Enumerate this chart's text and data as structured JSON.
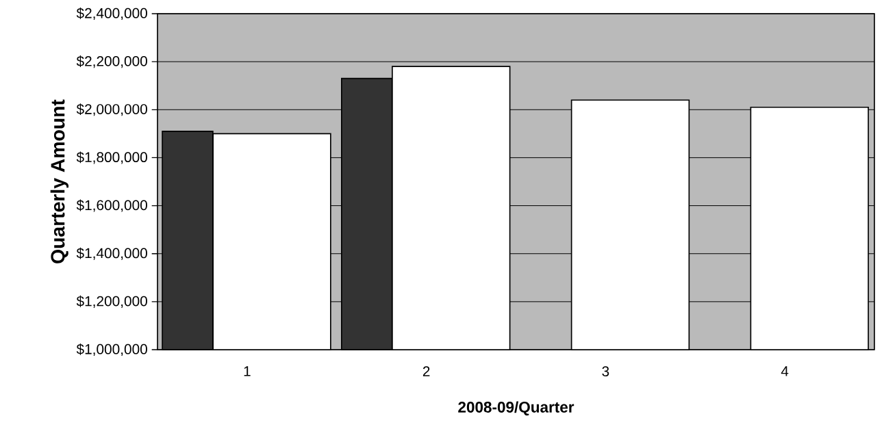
{
  "chart_data": {
    "type": "bar",
    "xlabel": "2008-09/Quarter",
    "ylabel": "Quarterly Amount",
    "categories": [
      "1",
      "2",
      "3",
      "4"
    ],
    "series": [
      {
        "color": "#333333",
        "values": [
          1910000,
          2130000,
          null,
          null
        ]
      },
      {
        "color": "#ffffff",
        "values": [
          1900000,
          2180000,
          2040000,
          2010000
        ]
      }
    ],
    "ylim": [
      1000000,
      2400000
    ],
    "yticks": [
      {
        "value": 1000000,
        "label": "$1,000,000"
      },
      {
        "value": 1200000,
        "label": "$1,200,000"
      },
      {
        "value": 1400000,
        "label": "$1,400,000"
      },
      {
        "value": 1600000,
        "label": "$1,600,000"
      },
      {
        "value": 1800000,
        "label": "$1,800,000"
      },
      {
        "value": 2000000,
        "label": "$2,000,000"
      },
      {
        "value": 2200000,
        "label": "$2,200,000"
      },
      {
        "value": 2400000,
        "label": "$2,400,000"
      }
    ],
    "grid": "y"
  }
}
